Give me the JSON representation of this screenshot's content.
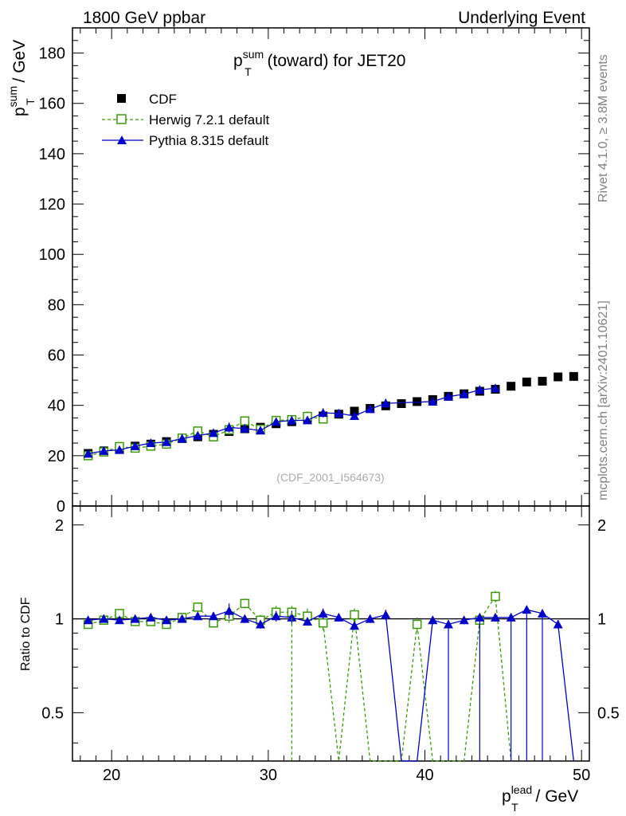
{
  "header": {
    "left": "1800 GeV ppbar",
    "right": "Underlying Event"
  },
  "side": {
    "rivet": "Rivet 4.1.0, ≥ 3.8M events",
    "mcplots": "mcplots.cern.ch [arXiv:2401.10621]"
  },
  "chart_data": {
    "type": "scatter",
    "title_main": "p",
    "title_sup": "sum",
    "title_sub": "T",
    "title_rest": " (toward) for JET20",
    "watermark": "(CDF_2001_I564673)",
    "ylabel_main": "p",
    "ylabel_sup": "sum",
    "ylabel_sub": "T",
    "ylabel_rest": " / GeV",
    "xlabel_main": "p",
    "xlabel_sup": "lead",
    "xlabel_sub": "T",
    "xlabel_rest": " / GeV",
    "ratio_ylabel": "Ratio to CDF",
    "xlim": [
      17.5,
      50.5
    ],
    "ylim": [
      0,
      190
    ],
    "ratio_ylim": [
      0.35,
      2.3
    ],
    "xticks": [
      "20",
      "30",
      "40",
      "50"
    ],
    "yticks": [
      "0",
      "20",
      "40",
      "60",
      "80",
      "100",
      "120",
      "140",
      "160",
      "180"
    ],
    "ratio_yticks": [
      "0.5",
      "1",
      "2"
    ],
    "legend": {
      "cdf": "CDF",
      "herwig": "Herwig 7.2.1 default",
      "pythia": "Pythia 8.315 default"
    },
    "colors": {
      "cdf": "#000000",
      "herwig": "#3a9a06",
      "pythia": "#0000cc"
    },
    "x": [
      18.5,
      19.5,
      20.5,
      21.5,
      22.5,
      23.5,
      24.5,
      25.5,
      26.5,
      27.5,
      28.5,
      29.5,
      30.5,
      31.5,
      32.5,
      33.5,
      34.5,
      35.5,
      36.5,
      37.5,
      38.5,
      39.5,
      40.5,
      41.5,
      42.5,
      43.5,
      44.5,
      45.5,
      46.5,
      47.5,
      48.5,
      49.5
    ],
    "cdf": [
      20.9,
      21.9,
      22.6,
      23.8,
      24.6,
      25.6,
      26.8,
      27.5,
      28.5,
      29.6,
      30.7,
      31.3,
      32.7,
      33.5,
      34.9,
      35.8,
      36.5,
      37.7,
      38.8,
      39.8,
      40.7,
      41.5,
      42.3,
      43.6,
      44.6,
      45.6,
      46.4,
      47.6,
      49.3,
      49.6,
      51.3,
      51.5
    ],
    "cdf_err": [
      0.8,
      0.7,
      0.7,
      0.7,
      0.7,
      0.7,
      0.8,
      0.8,
      0.8,
      0.9,
      0.9,
      0.9,
      1.0,
      1.0,
      1.0,
      1.1,
      1.1,
      1.1,
      1.2,
      1.2,
      1.2,
      1.3,
      1.3,
      1.3,
      1.4,
      1.4,
      1.5,
      1.5,
      1.5,
      1.6,
      1.6,
      1.7
    ],
    "herwig_x": [
      18.5,
      19.5,
      20.5,
      21.5,
      22.5,
      23.5,
      24.5,
      25.5,
      26.5,
      27.5,
      28.5,
      29.5,
      30.5,
      31.5,
      32.5,
      33.5
    ],
    "herwig": [
      20.0,
      21.5,
      23.6,
      23.0,
      23.8,
      24.6,
      27.0,
      29.8,
      27.5,
      30.3,
      33.8,
      30.5,
      34.0,
      34.3,
      35.6,
      34.6
    ],
    "herwig_err": [
      0.6,
      0.7,
      0.8,
      0.7,
      0.8,
      0.8,
      0.9,
      1.0,
      1.0,
      1.5,
      1.2,
      1.3,
      1.6,
      1.8,
      2.0,
      1.8
    ],
    "pythia_x": [
      18.5,
      19.5,
      20.5,
      21.5,
      22.5,
      23.5,
      24.5,
      25.5,
      26.5,
      27.5,
      28.5,
      29.5,
      30.5,
      31.5,
      32.5,
      33.5,
      34.5,
      35.5,
      36.5,
      37.5,
      40.5,
      41.5,
      42.5,
      43.5,
      44.5
    ],
    "pythia": [
      20.8,
      21.9,
      22.3,
      23.8,
      25.0,
      25.4,
      26.8,
      28.0,
      29.0,
      31.2,
      30.8,
      30.0,
      33.5,
      34.0,
      34.1,
      37.0,
      36.8,
      35.8,
      38.5,
      40.8,
      41.5,
      43.5,
      44.4,
      46.2,
      46.8
    ],
    "pythia_err": [
      0.6,
      0.6,
      0.7,
      0.7,
      0.8,
      0.8,
      0.9,
      0.9,
      1.0,
      2.0,
      1.0,
      1.0,
      1.0,
      1.8,
      1.1,
      1.8,
      1.2,
      1.2,
      1.3,
      1.8,
      1.3,
      1.3,
      1.4,
      1.4,
      1.5
    ],
    "herwig_ratio": [
      0.96,
      0.99,
      1.04,
      0.98,
      0.98,
      0.96,
      1.01,
      1.09,
      0.97,
      1.02,
      1.12,
      0.99,
      1.05,
      1.05,
      1.02,
      0.97,
      0.3,
      1.03,
      0.3,
      0.3,
      0.96,
      0.3,
      0.3,
      0.3,
      0.99,
      1.18,
      0.3
    ],
    "herwig_ratio_x": [
      18.5,
      19.5,
      20.5,
      21.5,
      22.5,
      23.5,
      24.5,
      25.5,
      26.5,
      27.5,
      28.5,
      29.5,
      30.5,
      31.5,
      32.5,
      33.5,
      34.5,
      35.5,
      36.5,
      38.5,
      39.5,
      40.5,
      41.5,
      42.5,
      43.5,
      44.5,
      45.5
    ],
    "herwig_ratio_err": [
      0.03,
      0.03,
      0.03,
      0.03,
      0.03,
      0.03,
      0.03,
      0.03,
      0.03,
      0.05,
      0.04,
      0.04,
      0.05,
      0.05,
      0.06,
      0.05,
      0,
      0.05,
      0,
      0,
      0.05,
      0,
      0,
      0,
      0.05,
      0.05,
      0
    ],
    "pythia_ratio_x": [
      18.5,
      19.5,
      20.5,
      21.5,
      22.5,
      23.5,
      24.5,
      25.5,
      26.5,
      27.5,
      28.5,
      29.5,
      30.5,
      31.5,
      32.5,
      33.5,
      34.5,
      35.5,
      36.5,
      37.5,
      38.5,
      39.5,
      40.5,
      41.5,
      42.5,
      43.5,
      44.5,
      45.5,
      46.5,
      47.5,
      48.5,
      49.5
    ],
    "pythia_ratio": [
      0.99,
      1.0,
      0.99,
      1.0,
      1.01,
      0.99,
      1.0,
      1.02,
      1.02,
      1.06,
      1.0,
      0.96,
      1.02,
      1.01,
      0.98,
      1.04,
      1.01,
      0.95,
      1.0,
      1.03,
      0.3,
      0.3,
      0.99,
      0.96,
      0.99,
      1.01,
      1.01,
      1.01,
      1.07,
      1.04,
      0.96,
      0.3
    ],
    "pythia_ratio_err": [
      0.02,
      0.02,
      0.02,
      0.02,
      0.02,
      0.02,
      0.02,
      0.02,
      0.03,
      0.06,
      0.03,
      0.03,
      0.04,
      0.05,
      0.03,
      0.04,
      0.03,
      0.03,
      0.03,
      0.04,
      0,
      0,
      0.03,
      0.03,
      0.03,
      0.03,
      0.03,
      0.03,
      0.03,
      0.03,
      0.03,
      0
    ]
  }
}
